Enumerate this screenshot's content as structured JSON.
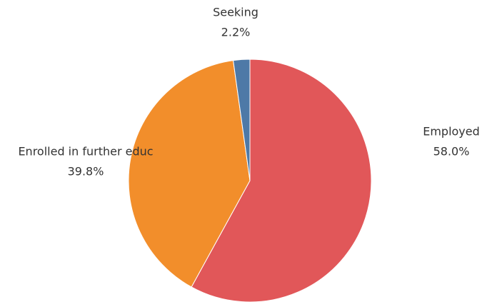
{
  "chart_data": {
    "type": "pie",
    "categories": [
      "Employed",
      "Enrolled in further educ",
      "Seeking"
    ],
    "values": [
      58.0,
      39.8,
      2.2
    ],
    "value_labels": [
      "58.0%",
      "39.8%",
      "2.2%"
    ],
    "colors": [
      "#e15759",
      "#f28e2b",
      "#4e79a7"
    ]
  }
}
